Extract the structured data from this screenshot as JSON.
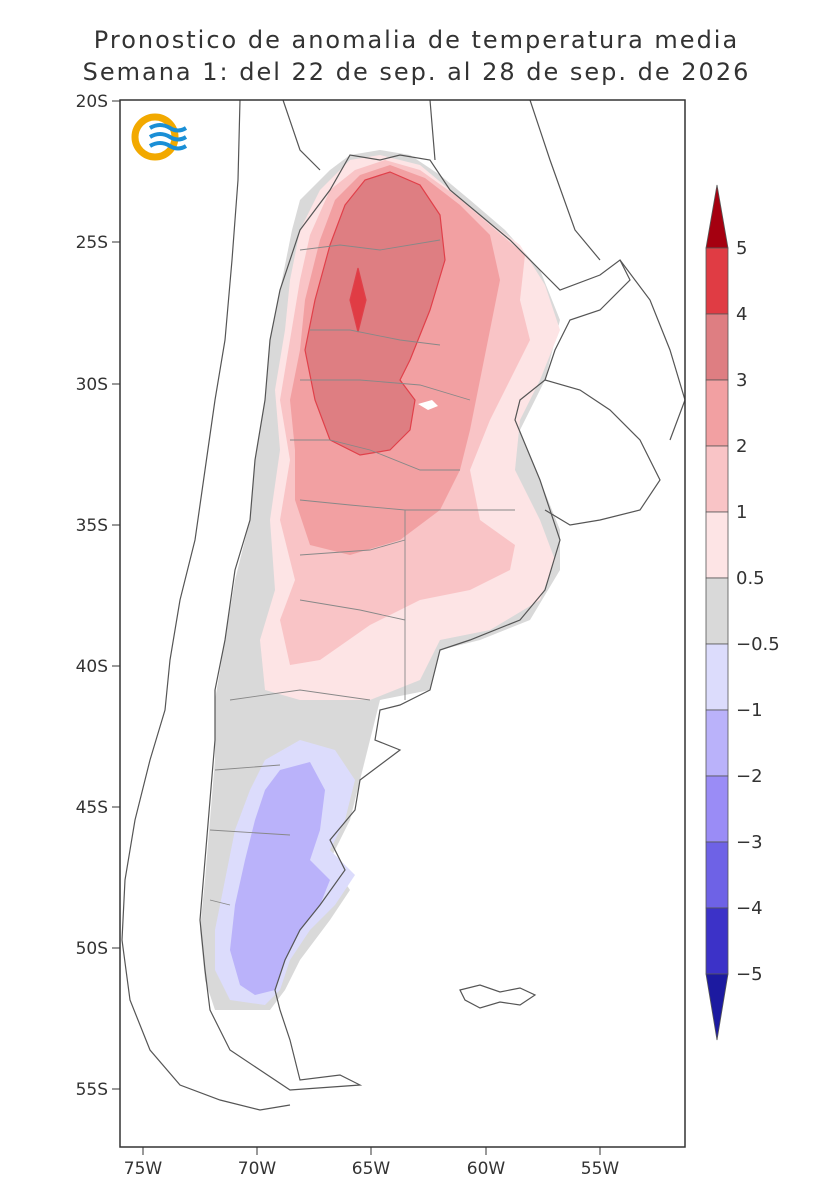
{
  "title_line1": "Pronostico de anomalia de temperatura media",
  "title_line2": "Semana 1: del 22 de sep. al 28 de sep. de 2026",
  "lat_ticks": [
    "20S",
    "25S",
    "30S",
    "35S",
    "40S",
    "45S",
    "50S",
    "55S"
  ],
  "lon_ticks": [
    "75W",
    "70W",
    "65W",
    "60W",
    "55W"
  ],
  "colorbar": {
    "labels": [
      "5",
      "4",
      "3",
      "2",
      "1",
      "0.5",
      "−0.5",
      "−1",
      "−2",
      "−3",
      "−4",
      "−5"
    ],
    "colors": {
      "gt5": "#a50010",
      "4to5": "#e03c44",
      "3to4": "#de7e82",
      "2to3": "#f2a0a2",
      "1to2": "#f9c4c6",
      "0.5to1": "#fde4e5",
      "neutral": "#d9d9d9",
      "m1tom0.5": "#dcdcfc",
      "m2tom1": "#bab2fa",
      "m3tom2": "#9a8cf6",
      "m4tom3": "#6e62e6",
      "m5tom4": "#3c32c8",
      "ltm5": "#1c1aa0"
    }
  },
  "logo": "smn-logo"
}
